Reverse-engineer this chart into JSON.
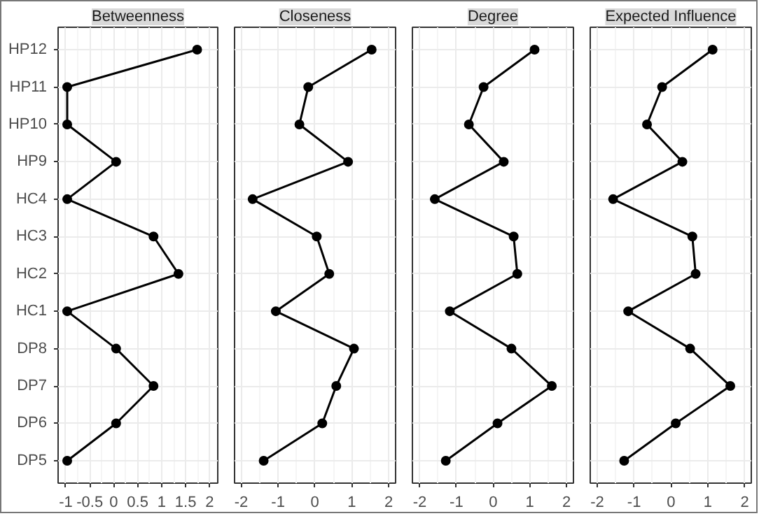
{
  "chart_data": [
    {
      "type": "line",
      "title": "Betweenness",
      "orientation": "horizontal",
      "categories": [
        "HP12",
        "HP11",
        "HP10",
        "HP9",
        "HC4",
        "HC3",
        "HC2",
        "HC1",
        "DP8",
        "DP7",
        "DP6",
        "DP5"
      ],
      "values": [
        1.74,
        -0.97,
        -0.97,
        0.05,
        -0.97,
        0.83,
        1.35,
        -0.97,
        0.05,
        0.83,
        0.05,
        -0.97
      ],
      "color": "#000000",
      "xlim": [
        -1.16,
        2.17
      ],
      "xticks": [
        {
          "value": -1,
          "label": "-1"
        },
        {
          "value": -0.5,
          "label": "-0.5"
        },
        0,
        0.5,
        1,
        1.5,
        2
      ],
      "grid": true,
      "marker": "circle"
    },
    {
      "type": "line",
      "title": "Closeness",
      "orientation": "horizontal",
      "categories": [
        null,
        null,
        null,
        null,
        null,
        null,
        null,
        null,
        null,
        null,
        null,
        null
      ],
      "values": [
        1.54,
        -0.18,
        -0.42,
        0.9,
        -1.69,
        0.05,
        0.39,
        -1.06,
        1.06,
        0.58,
        0.2,
        -1.39
      ],
      "color": "#000000",
      "xlim": [
        -2.18,
        2.19
      ],
      "xticks": [
        -2,
        -1,
        0,
        1,
        2
      ],
      "grid": true,
      "marker": "circle",
      "tick_labels": "x"
    },
    {
      "type": "line",
      "title": "Degree",
      "orientation": "horizontal",
      "categories": [
        null,
        null,
        null,
        null,
        null,
        null,
        null,
        null,
        null,
        null,
        null,
        null
      ],
      "values": [
        1.13,
        -0.26,
        -0.66,
        0.29,
        -1.59,
        0.56,
        0.66,
        -1.18,
        0.5,
        1.6,
        0.12,
        -1.29
      ],
      "color": "#000000",
      "xlim": [
        -2.2,
        2.19
      ],
      "xticks": [
        -2,
        -1,
        0,
        1,
        2
      ],
      "grid": true,
      "marker": "circle",
      "tick_labels": "x"
    },
    {
      "type": "line",
      "title": "Expected Influence",
      "orientation": "horizontal",
      "categories": [
        null,
        null,
        null,
        null,
        null,
        null,
        null,
        null,
        null,
        null,
        null,
        null
      ],
      "values": [
        1.13,
        -0.24,
        -0.65,
        0.31,
        -1.57,
        0.58,
        0.67,
        -1.16,
        0.52,
        1.61,
        0.13,
        -1.27
      ],
      "color": "#000000",
      "xlim": [
        -2.19,
        2.18
      ],
      "xticks": [
        -2,
        -1,
        0,
        1,
        2
      ],
      "grid": true,
      "marker": "circle",
      "tick_labels": "x"
    }
  ]
}
